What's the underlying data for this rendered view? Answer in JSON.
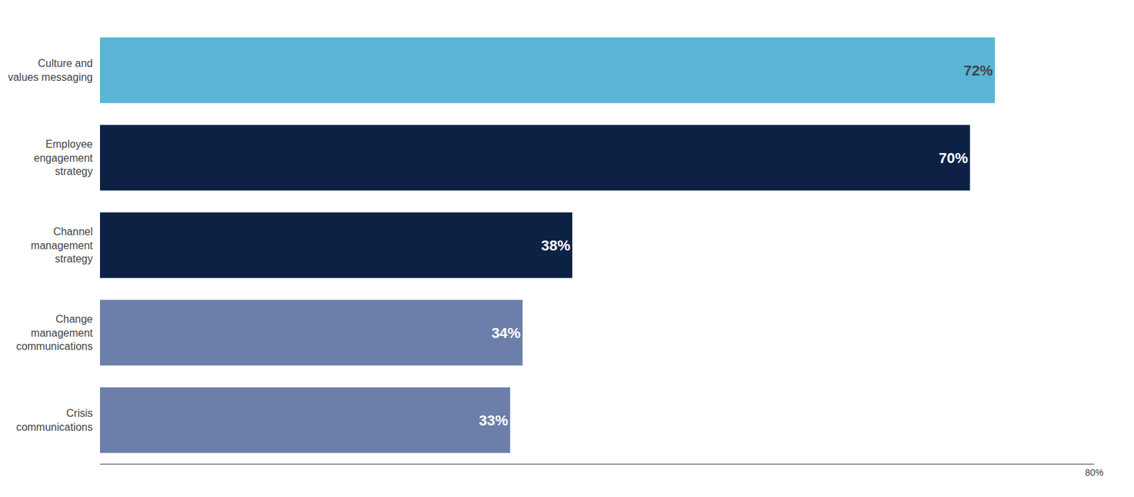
{
  "chart_data": {
    "type": "bar",
    "orientation": "horizontal",
    "categories": [
      "Crisis\ncommunications",
      "Change\nmanagement\ncommunications",
      "Channel\nmanagement\nstrategy",
      "Employee\nengagement\nstrategy",
      "Culture and\nvalues messaging"
    ],
    "values": [
      33,
      34,
      38,
      70,
      72
    ],
    "value_labels": [
      "33%",
      "34%",
      "38%",
      "70%",
      "72%"
    ],
    "data_labels": true,
    "colors": [
      "#6b7faa",
      "#6b7faa",
      "#0d2145",
      "#0d2145",
      "#5ab4d6"
    ],
    "xlim": [
      0,
      80
    ],
    "xticks": [
      {
        "value": 80,
        "label": "80%"
      }
    ],
    "grid": false
  }
}
